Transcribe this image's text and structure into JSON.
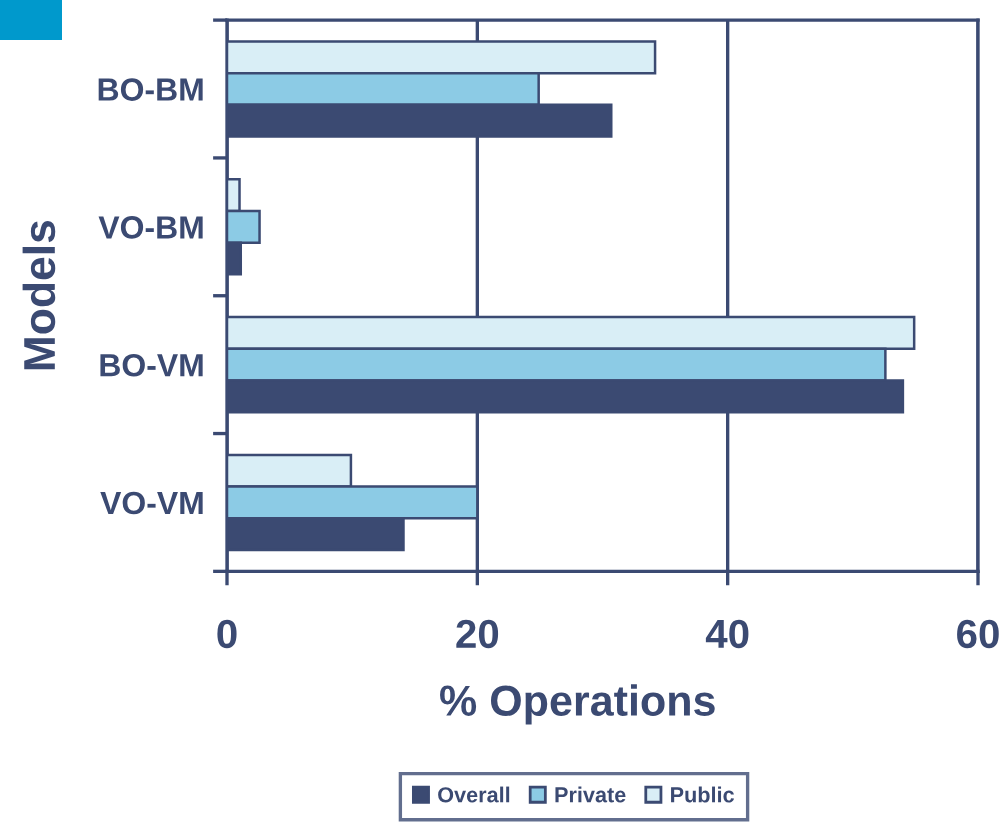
{
  "chart_data": {
    "type": "bar",
    "orientation": "horizontal",
    "categories": [
      "BO-BM",
      "VO-BM",
      "BO-VM",
      "VO-VM"
    ],
    "series": [
      {
        "name": "Public",
        "color": "#d9eef6",
        "values": [
          34.2,
          1.0,
          54.9,
          9.9
        ]
      },
      {
        "name": "Private",
        "color": "#8ccbe5",
        "values": [
          24.9,
          2.6,
          52.6,
          20.0
        ]
      },
      {
        "name": "Overall",
        "color": "#3b4a72",
        "values": [
          30.7,
          1.1,
          54.0,
          14.1
        ]
      }
    ],
    "xlim": [
      0,
      60
    ],
    "xticks": [
      0,
      20,
      40,
      60
    ],
    "xlabel": "% Operations",
    "ylabel": "Models",
    "grid": "x",
    "legend": "bottom"
  }
}
